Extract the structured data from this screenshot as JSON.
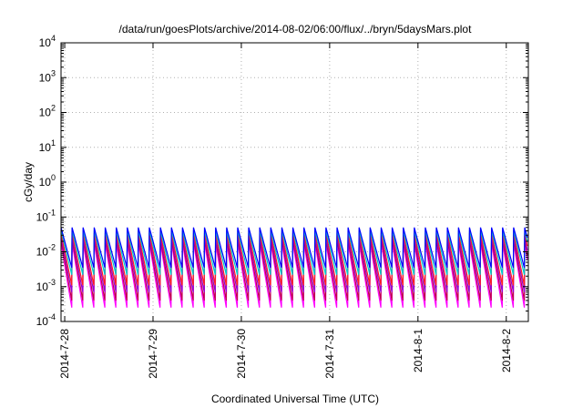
{
  "chart_data": {
    "type": "line",
    "title": "/data/run/goesPlots/archive/2014-08-02/06:00/flux/../bryn/5daysMars.plot",
    "xlabel": "Coordinated Universal Time (UTC)",
    "ylabel": "cGy/day",
    "yscale": "log",
    "ylim": [
      0.0001,
      10000
    ],
    "y_ticks": [
      {
        "base": "10",
        "exp": "-4",
        "value": 0.0001
      },
      {
        "base": "10",
        "exp": "-3",
        "value": 0.001
      },
      {
        "base": "10",
        "exp": "-2",
        "value": 0.01
      },
      {
        "base": "10",
        "exp": "-1",
        "value": 0.1
      },
      {
        "base": "10",
        "exp": "0",
        "value": 1
      },
      {
        "base": "10",
        "exp": "1",
        "value": 10
      },
      {
        "base": "10",
        "exp": "2",
        "value": 100
      },
      {
        "base": "10",
        "exp": "3",
        "value": 1000
      },
      {
        "base": "10",
        "exp": "4",
        "value": 10000
      }
    ],
    "xlim": [
      "2014-07-27 23:00",
      "2014-08-02 06:00"
    ],
    "x_ticks": [
      "2014-7-28",
      "2014-7-29",
      "2014-7-30",
      "2014-7-31",
      "2014-8-1",
      "2014-8-2"
    ],
    "grid": true,
    "sawtooth_period_hours": 3,
    "series": [
      {
        "color": "#ff00ff",
        "peak": 0.018,
        "trough": 0.00025
      },
      {
        "color": "#c0004e",
        "peak": 0.022,
        "trough": 0.0004
      },
      {
        "color": "#9400d3",
        "peak": 0.028,
        "trough": 0.0007
      },
      {
        "color": "#ff1f1f",
        "peak": 0.035,
        "trough": 0.0011
      },
      {
        "color": "#00c8c8",
        "peak": 0.042,
        "trough": 0.0022
      },
      {
        "color": "#0000ff",
        "peak": 0.05,
        "trough": 0.0035
      }
    ]
  }
}
